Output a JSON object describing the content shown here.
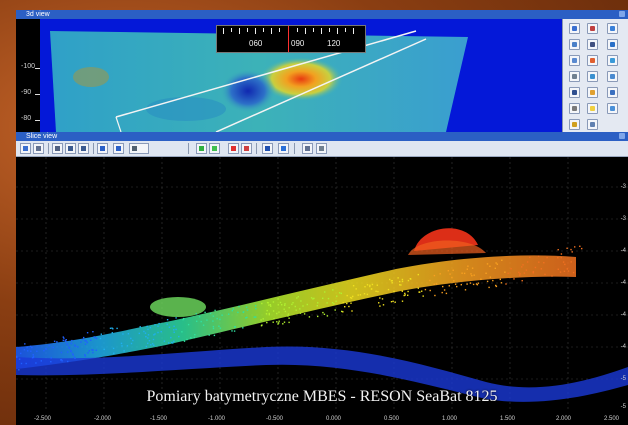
{
  "top_window": {
    "title": "3d view",
    "depth_labels": [
      "-100",
      "-90",
      "-80"
    ],
    "compass_labels": [
      "060",
      "090",
      "120"
    ]
  },
  "slice_window": {
    "title": "Slice view",
    "caption": "Pomiary batymetryczne MBES - RESON SeaBat 8125",
    "x_ticks": [
      "-2.500",
      "-2.000",
      "-1.500",
      "-1.000",
      "-0.500",
      "0.000",
      "0.500",
      "1.000",
      "1.500",
      "2.000",
      "2.500"
    ],
    "y_ticks": [
      "-3",
      "-3",
      "-4",
      "-4",
      "-4",
      "-4",
      "-5",
      "-5"
    ]
  },
  "colors": {
    "title_bar": "#2b5fc4",
    "viewport_3d": "#0418d8",
    "slice_background": "#000000"
  }
}
